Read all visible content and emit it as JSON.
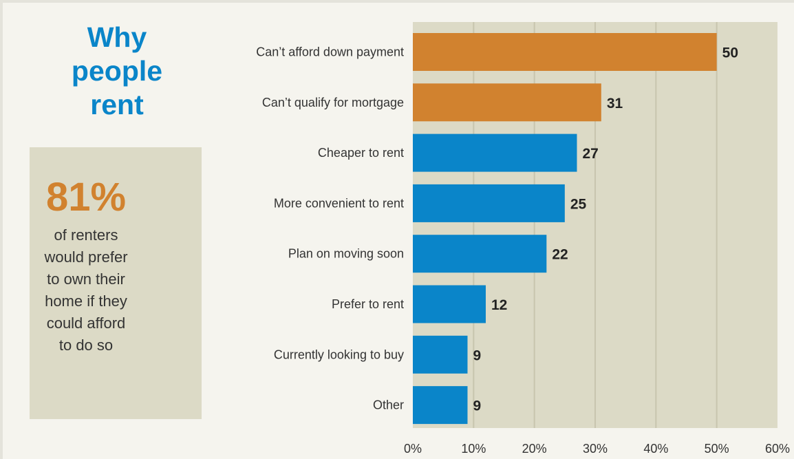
{
  "sidebar": {
    "title_lines": [
      "Why",
      "people",
      "rent"
    ],
    "stat_value": "81%",
    "stat_lines": [
      "of renters",
      "would prefer",
      "to own their",
      "home if they",
      "could afford",
      "to do so"
    ]
  },
  "chart_data": {
    "type": "bar",
    "orientation": "horizontal",
    "categories": [
      "Can’t afford down payment",
      "Can’t qualify for mortgage",
      "Cheaper to rent",
      "More convenient to rent",
      "Plan on moving soon",
      "Prefer to rent",
      "Currently looking to buy",
      "Other"
    ],
    "values": [
      50,
      31,
      27,
      25,
      22,
      12,
      9,
      9
    ],
    "value_labels": [
      "50",
      "31",
      "27",
      "25",
      "22",
      "12",
      "9",
      "9"
    ],
    "xlim": [
      0,
      60
    ],
    "x_ticks": [
      0,
      10,
      20,
      30,
      40,
      50,
      60
    ],
    "x_tick_labels": [
      "0%",
      "10%",
      "20%",
      "30%",
      "40%",
      "50%",
      "60%"
    ],
    "highlight_count": 2,
    "grid": "vertical",
    "colors": {
      "highlight": "#d1822f",
      "bar": "#0a85c9",
      "plot_background": "#dcdac6",
      "grid": "#c8c5ae"
    }
  }
}
